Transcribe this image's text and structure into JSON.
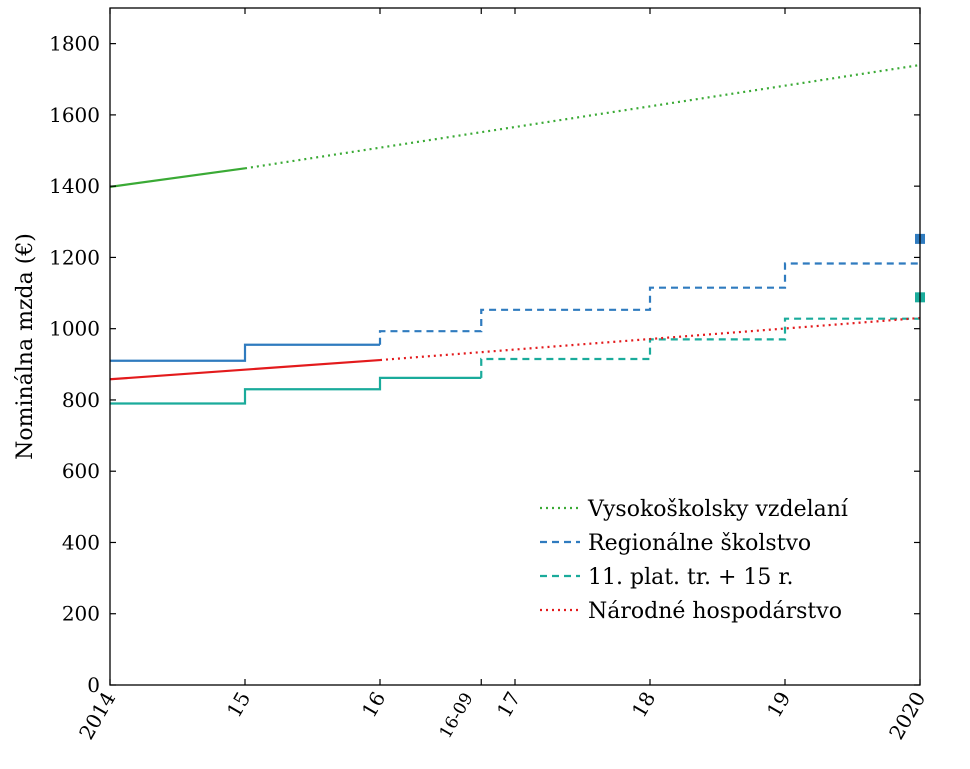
{
  "chart_data": {
    "type": "line",
    "title": "",
    "xlabel": "",
    "ylabel": "Nominálna mzda (€)",
    "xlim": [
      2014,
      2020
    ],
    "ylim": [
      0,
      1900
    ],
    "yticks": [
      0,
      200,
      400,
      600,
      800,
      1000,
      1200,
      1400,
      1600,
      1800
    ],
    "xticks": [
      {
        "x": 2014,
        "label": "2014"
      },
      {
        "x": 2015,
        "label": "15"
      },
      {
        "x": 2016,
        "label": "16"
      },
      {
        "x": 2016.75,
        "label": "16-09"
      },
      {
        "x": 2017,
        "label": "17"
      },
      {
        "x": 2018,
        "label": "18"
      },
      {
        "x": 2019,
        "label": "19"
      },
      {
        "x": 2020,
        "label": "2020"
      }
    ],
    "grid": false,
    "legend_position": "bottom-right",
    "series": [
      {
        "name": "Vysokoškolsky vzdelaní",
        "color": "#3aaa35",
        "legend_style": "dotted",
        "solid": [
          [
            2014,
            1398
          ],
          [
            2015,
            1450
          ]
        ],
        "projected": [
          [
            2015,
            1450
          ],
          [
            2020,
            1740
          ]
        ]
      },
      {
        "name": "Regionálne školstvo",
        "color": "#2f7bbf",
        "legend_style": "dashed",
        "step": true,
        "solid": [
          [
            2014,
            910
          ],
          [
            2015,
            955
          ],
          [
            2016,
            955
          ]
        ],
        "projected": [
          [
            2016,
            993
          ],
          [
            2016.75,
            1053
          ],
          [
            2018,
            1115
          ],
          [
            2019,
            1183
          ],
          [
            2020,
            1183
          ]
        ],
        "marker": {
          "x": 2020,
          "y": 1252
        }
      },
      {
        "name": "11. plat. tr. + 15 r.",
        "color": "#1aab9b",
        "legend_style": "dashed",
        "step": true,
        "solid": [
          [
            2014,
            790
          ],
          [
            2015,
            830
          ],
          [
            2016,
            862
          ],
          [
            2016.75,
            862
          ]
        ],
        "projected": [
          [
            2016.75,
            915
          ],
          [
            2018,
            970
          ],
          [
            2019,
            1028
          ],
          [
            2020,
            1028
          ]
        ],
        "marker": {
          "x": 2020,
          "y": 1088
        }
      },
      {
        "name": "Národné hospodárstvo",
        "color": "#e31a1c",
        "legend_style": "dotted",
        "solid": [
          [
            2014,
            858
          ],
          [
            2016,
            912
          ]
        ],
        "projected": [
          [
            2016,
            912
          ],
          [
            2020,
            1030
          ]
        ]
      }
    ]
  }
}
